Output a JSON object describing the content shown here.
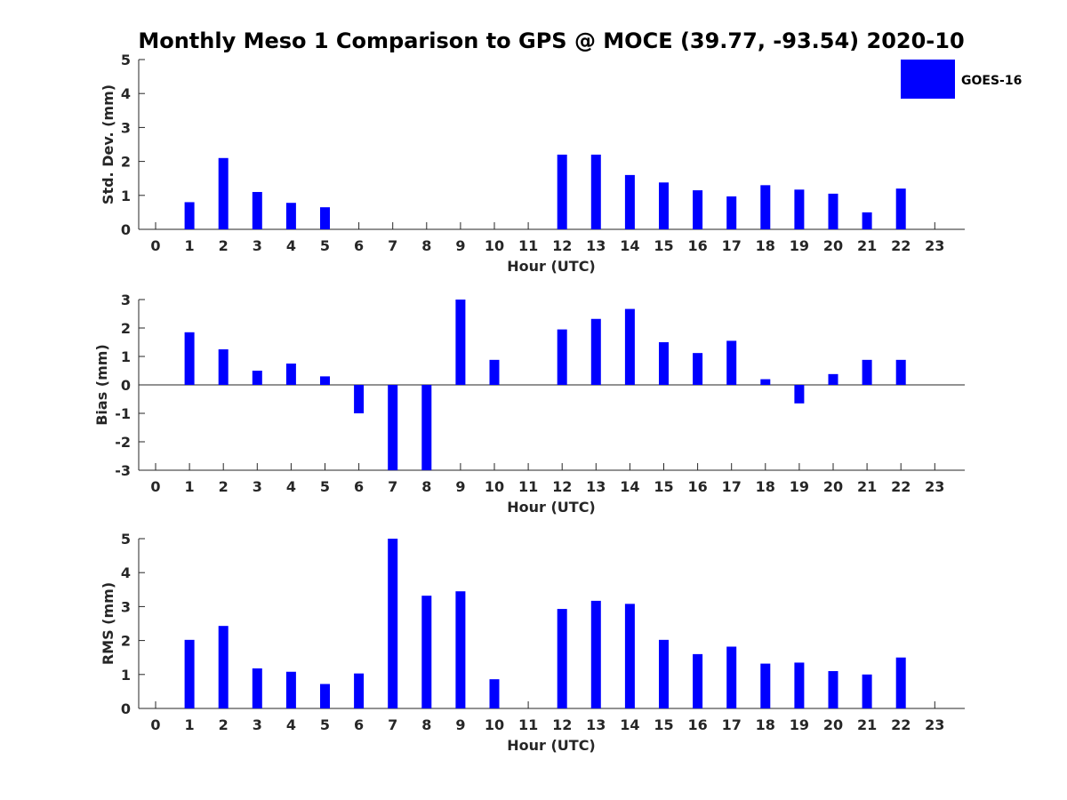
{
  "title": "Monthly Meso 1 Comparison to GPS @ MOCE (39.77, -93.54) 2020-10",
  "legend": {
    "label": "GOES-16",
    "color": "#0000ff"
  },
  "chart_data": [
    {
      "type": "bar",
      "name": "std",
      "ylabel": "Std. Dev. (mm)",
      "xlabel": "Hour (UTC)",
      "ylim": [
        0,
        5
      ],
      "yticks": [
        0,
        1,
        2,
        3,
        4,
        5
      ],
      "categories": [
        "0",
        "1",
        "2",
        "3",
        "4",
        "5",
        "6",
        "7",
        "8",
        "9",
        "10",
        "11",
        "12",
        "13",
        "14",
        "15",
        "16",
        "17",
        "18",
        "19",
        "20",
        "21",
        "22",
        "23"
      ],
      "values": [
        null,
        0.8,
        2.1,
        1.1,
        0.78,
        0.65,
        null,
        null,
        null,
        null,
        null,
        null,
        2.2,
        2.2,
        1.6,
        1.38,
        1.15,
        0.97,
        1.3,
        1.17,
        1.05,
        0.5,
        1.2,
        null
      ]
    },
    {
      "type": "bar",
      "name": "bias",
      "ylabel": "Bias (mm)",
      "xlabel": "Hour (UTC)",
      "ylim": [
        -3,
        3
      ],
      "yticks": [
        -3,
        -2,
        -1,
        0,
        1,
        2,
        3
      ],
      "zero_line": true,
      "categories": [
        "0",
        "1",
        "2",
        "3",
        "4",
        "5",
        "6",
        "7",
        "8",
        "9",
        "10",
        "11",
        "12",
        "13",
        "14",
        "15",
        "16",
        "17",
        "18",
        "19",
        "20",
        "21",
        "22",
        "23"
      ],
      "values": [
        null,
        1.85,
        1.25,
        0.5,
        0.75,
        0.3,
        -1.0,
        -3.0,
        -3.0,
        3.0,
        0.88,
        null,
        1.95,
        2.32,
        2.67,
        1.5,
        1.12,
        1.55,
        0.2,
        -0.65,
        0.38,
        0.88,
        0.88,
        null
      ]
    },
    {
      "type": "bar",
      "name": "rms",
      "ylabel": "RMS (mm)",
      "xlabel": "Hour (UTC)",
      "ylim": [
        0,
        5
      ],
      "yticks": [
        0,
        1,
        2,
        3,
        4,
        5
      ],
      "categories": [
        "0",
        "1",
        "2",
        "3",
        "4",
        "5",
        "6",
        "7",
        "8",
        "9",
        "10",
        "11",
        "12",
        "13",
        "14",
        "15",
        "16",
        "17",
        "18",
        "19",
        "20",
        "21",
        "22",
        "23"
      ],
      "values": [
        null,
        2.02,
        2.43,
        1.18,
        1.08,
        0.72,
        1.03,
        5.0,
        3.32,
        3.45,
        0.86,
        null,
        2.93,
        3.17,
        3.08,
        2.02,
        1.6,
        1.82,
        1.32,
        1.35,
        1.1,
        1.0,
        1.5,
        null
      ]
    }
  ]
}
